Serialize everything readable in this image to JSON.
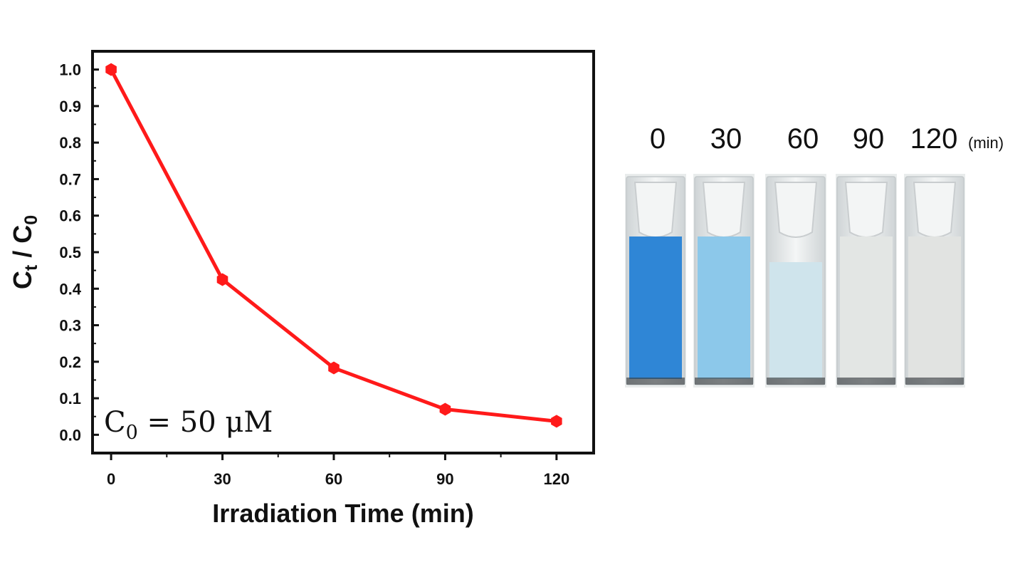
{
  "chart_data": {
    "type": "line",
    "x": [
      0,
      30,
      60,
      90,
      120
    ],
    "series": [
      {
        "values": [
          1.0,
          0.425,
          0.183,
          0.07,
          0.037
        ],
        "color": "#ff1a1a"
      }
    ],
    "xlabel": "Irradiation Time (min)",
    "ylabel": {
      "main": "C",
      "sub1": "t",
      "sep": " / ",
      "main2": "C",
      "sub2": "0"
    },
    "xlim": [
      -5,
      130
    ],
    "ylim": [
      -0.05,
      1.05
    ],
    "xticks": [
      "0",
      "30",
      "60",
      "90",
      "120"
    ],
    "yticks": [
      "0.0",
      "0.1",
      "0.2",
      "0.3",
      "0.4",
      "0.5",
      "0.6",
      "0.7",
      "0.8",
      "0.9",
      "1.0"
    ],
    "grid": false,
    "annotation": {
      "main": "C",
      "sub": "0",
      "rest": " = 50 μM"
    }
  },
  "cuvettes": {
    "labels": [
      "0",
      "30",
      "60",
      "90",
      "120"
    ],
    "unit": "(min)",
    "liquid_colors": [
      "#2f86d6",
      "#8cc8ea",
      "#cfe4ec",
      "#e3e6e4",
      "#e1e3e1"
    ]
  }
}
